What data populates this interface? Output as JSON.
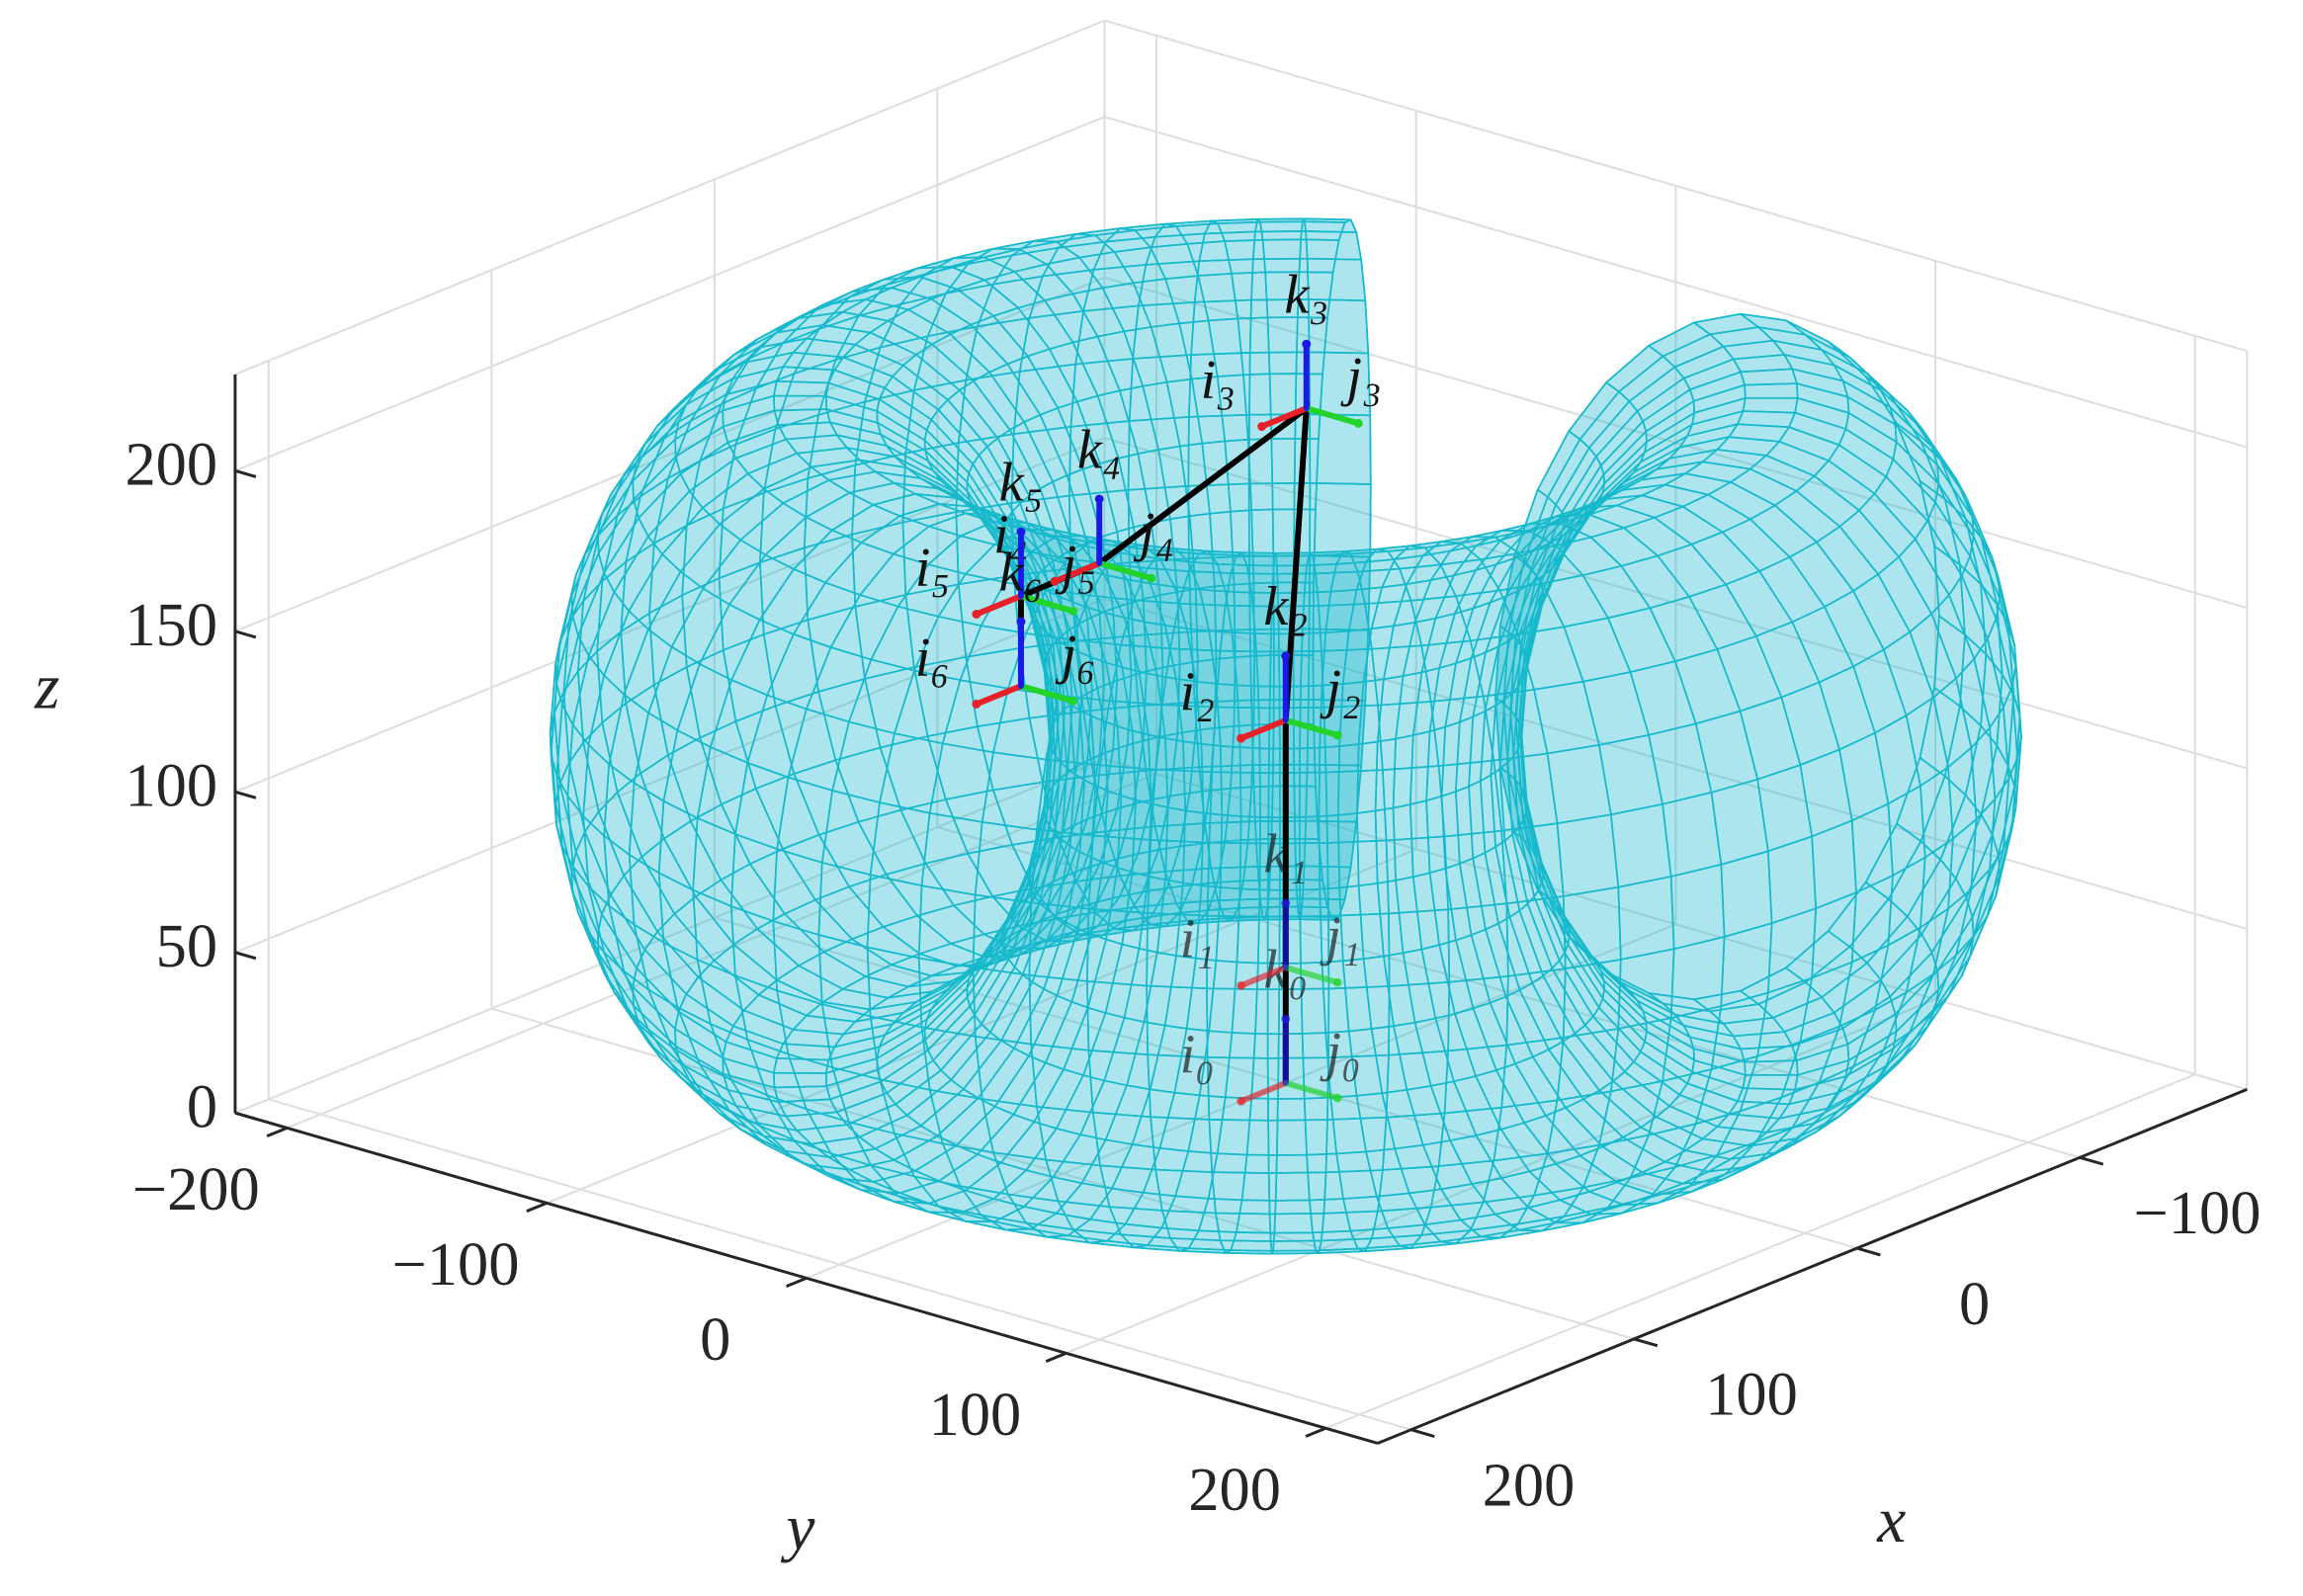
{
  "chart_data": {
    "type": "surface3d",
    "xlabel": "x",
    "ylabel": "y",
    "zlabel": "z",
    "xlim": [
      -175,
      215
    ],
    "ylim": [
      -220,
      220
    ],
    "zlim": [
      0,
      230
    ],
    "xticks": [
      {
        "value": -100,
        "label": "−100"
      },
      0,
      100,
      200
    ],
    "yticks": [
      {
        "value": -200,
        "label": "−200"
      },
      {
        "value": -100,
        "label": "−100"
      },
      0,
      100,
      200
    ],
    "zticks": [
      0,
      50,
      100,
      150,
      200
    ],
    "grid": true,
    "surface": {
      "color": "#17b9cc",
      "center_z": 108,
      "major_radius": 142,
      "half_width": 73,
      "half_height": 106,
      "gap_deg": [
        158,
        214
      ]
    },
    "link_color": "#000000",
    "axis_colors": {
      "i": "#e8202a",
      "j": "#22d42a",
      "k": "#1a1ae6"
    },
    "frames": [
      {
        "origin": [
          0,
          0,
          0
        ],
        "i": "i₀",
        "j": "j₀",
        "k": "k₀"
      },
      {
        "origin": [
          0,
          0,
          36
        ],
        "i": "i₁",
        "j": "j₁",
        "k": "k₁"
      },
      {
        "origin": [
          0,
          0,
          113
        ],
        "i": "i₂",
        "j": "j₂",
        "k": "k₂"
      },
      {
        "origin": [
          0,
          8,
          212
        ],
        "i": "i₃",
        "j": "j₃",
        "k": "k₃"
      },
      {
        "origin": [
          37,
          -40,
          163
        ],
        "i": "i₄",
        "j": "j₄",
        "k": "k₄"
      },
      {
        "origin": [
          50,
          -59,
          152
        ],
        "i": "i₅",
        "j": "j₅",
        "k": "k₅"
      },
      {
        "origin": [
          50,
          -59,
          124
        ],
        "i": "i₆",
        "j": "j₆",
        "k": "k₆"
      }
    ]
  }
}
